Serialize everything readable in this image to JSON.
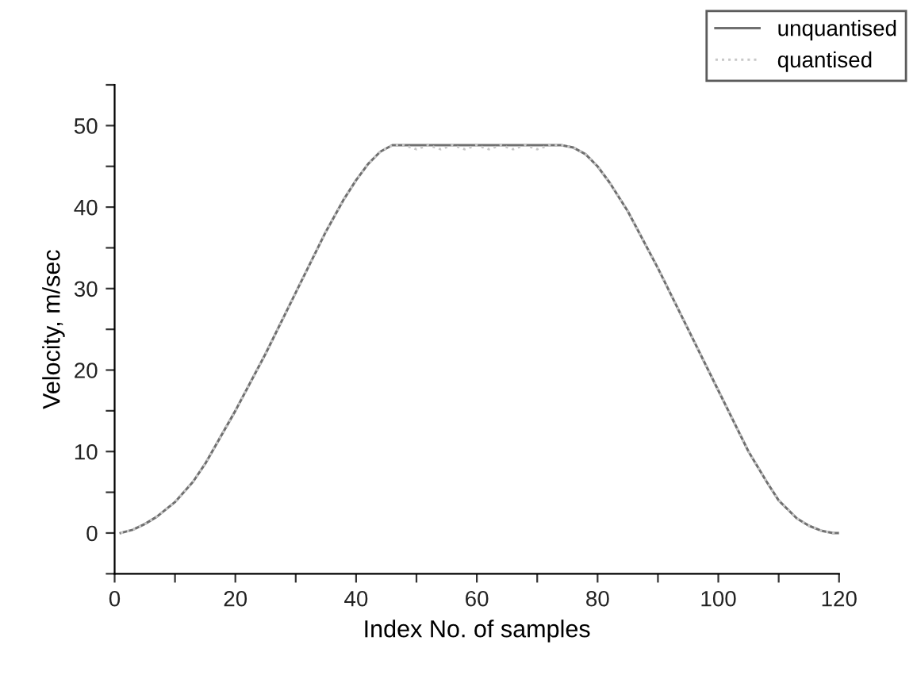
{
  "chart_data": {
    "type": "line",
    "xlabel": "Index No. of samples",
    "ylabel": "Velocity, m/sec",
    "xlim": [
      0,
      120
    ],
    "ylim": [
      -5,
      55
    ],
    "xticks": [
      0,
      {
        "value": 10,
        "label": null
      },
      20,
      {
        "value": 30,
        "label": null
      },
      40,
      {
        "value": 50,
        "label": null
      },
      60,
      {
        "value": 70,
        "label": null
      },
      80,
      {
        "value": 90,
        "label": null
      },
      100,
      {
        "value": 110,
        "label": null
      },
      120
    ],
    "yticks": [
      {
        "value": -5,
        "label": null
      },
      0,
      {
        "value": 5,
        "label": null
      },
      10,
      {
        "value": 15,
        "label": null
      },
      20,
      {
        "value": 25,
        "label": null
      },
      30,
      {
        "value": 35,
        "label": null
      },
      40,
      {
        "value": 45,
        "label": null
      },
      50,
      {
        "value": 55,
        "label": null
      }
    ],
    "grid": false,
    "legend": "top right",
    "series": [
      {
        "name": "unquantised",
        "color": "#707070",
        "line_style": "solid",
        "x": [
          1,
          3,
          5,
          7,
          10,
          13,
          15,
          20,
          25,
          30,
          35,
          38,
          40,
          42,
          44,
          46,
          50,
          55,
          60,
          65,
          70,
          74,
          76,
          78,
          80,
          82,
          85,
          90,
          95,
          100,
          105,
          108,
          110,
          113,
          115,
          117,
          119,
          120
        ],
        "values": [
          0,
          0.4,
          1.1,
          2.0,
          3.8,
          6.3,
          8.5,
          15,
          22,
          29.5,
          37,
          41,
          43.3,
          45.3,
          46.8,
          47.6,
          47.6,
          47.6,
          47.6,
          47.6,
          47.6,
          47.6,
          47.3,
          46.5,
          45,
          43,
          39.5,
          32.5,
          25,
          17.5,
          10,
          6.3,
          4,
          1.8,
          0.9,
          0.3,
          0,
          0
        ]
      },
      {
        "name": "quantised",
        "color": "#c8c8c8",
        "line_style": "dotted",
        "x": [
          1,
          3,
          5,
          7,
          10,
          13,
          15,
          20,
          25,
          30,
          35,
          38,
          40,
          42,
          44,
          46,
          48,
          50,
          52,
          54,
          56,
          58,
          60,
          62,
          64,
          66,
          68,
          70,
          72,
          74,
          76,
          78,
          80,
          82,
          85,
          90,
          95,
          100,
          105,
          108,
          110,
          113,
          115,
          117,
          119,
          120
        ],
        "values": [
          0,
          0.4,
          1.1,
          2.0,
          3.8,
          6.3,
          8.5,
          15,
          22,
          29.5,
          37,
          41,
          43.3,
          45.3,
          46.8,
          47.6,
          47.6,
          47.1,
          47.6,
          47.1,
          47.6,
          47.1,
          47.6,
          47.1,
          47.6,
          47.1,
          47.6,
          47.1,
          47.6,
          47.6,
          47.3,
          46.5,
          45,
          43,
          39.5,
          32.5,
          25,
          17.5,
          10,
          6.3,
          4,
          1.8,
          0.9,
          0.3,
          0,
          0
        ]
      }
    ]
  }
}
